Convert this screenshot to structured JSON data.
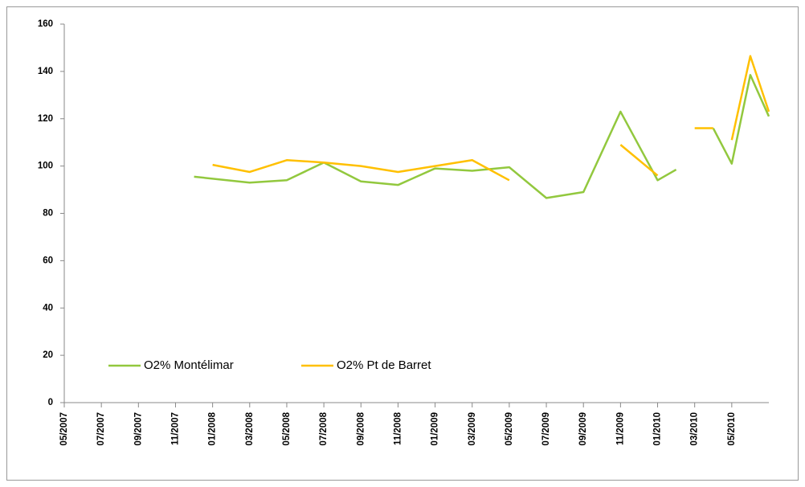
{
  "chart_data": {
    "type": "line",
    "xlim": [
      "05/2007",
      "07/2010"
    ],
    "xticks": [
      "05/2007",
      "07/2007",
      "09/2007",
      "11/2007",
      "01/2008",
      "03/2008",
      "05/2008",
      "07/2008",
      "09/2008",
      "11/2008",
      "01/2009",
      "03/2009",
      "05/2009",
      "07/2009",
      "09/2009",
      "11/2009",
      "01/2010",
      "03/2010",
      "05/2010"
    ],
    "ylim": [
      0,
      160
    ],
    "yticks": [
      0,
      20,
      40,
      60,
      80,
      100,
      120,
      140,
      160
    ],
    "grid": false,
    "legend": "bottom-left",
    "series": [
      {
        "name": "O2% Montélimar",
        "color": "#92c83e",
        "x": [
          "12/2007",
          "03/2008",
          "05/2008",
          "07/2008",
          "09/2008",
          "11/2008",
          "01/2009",
          "03/2009",
          "05/2009",
          "07/2009",
          "09/2009",
          "11/2009",
          "01/2010",
          "02/2010",
          "03/2010",
          "04/2010",
          "05/2010",
          "06/2010",
          "07/2010"
        ],
        "values": [
          95.5,
          93,
          94,
          101.5,
          93.5,
          92,
          99,
          98,
          99.5,
          86.5,
          89,
          123,
          94,
          98.5,
          null,
          116,
          101,
          138.5,
          121
        ]
      },
      {
        "name": "O2% Pt de Barret",
        "color": "#ffc000",
        "x": [
          "01/2008",
          "03/2008",
          "05/2008",
          "07/2008",
          "09/2008",
          "11/2008",
          "01/2009",
          "03/2009",
          "05/2009",
          "07/2009",
          "11/2009",
          "01/2010",
          "02/2010",
          "03/2010",
          "04/2010",
          null,
          "05/2010",
          "06/2010",
          "07/2010"
        ],
        "values": [
          100.5,
          97.5,
          102.5,
          101.5,
          100,
          97.5,
          100,
          102.5,
          94,
          null,
          109,
          96,
          null,
          116,
          116,
          null,
          111,
          146.5,
          123
        ]
      }
    ]
  }
}
